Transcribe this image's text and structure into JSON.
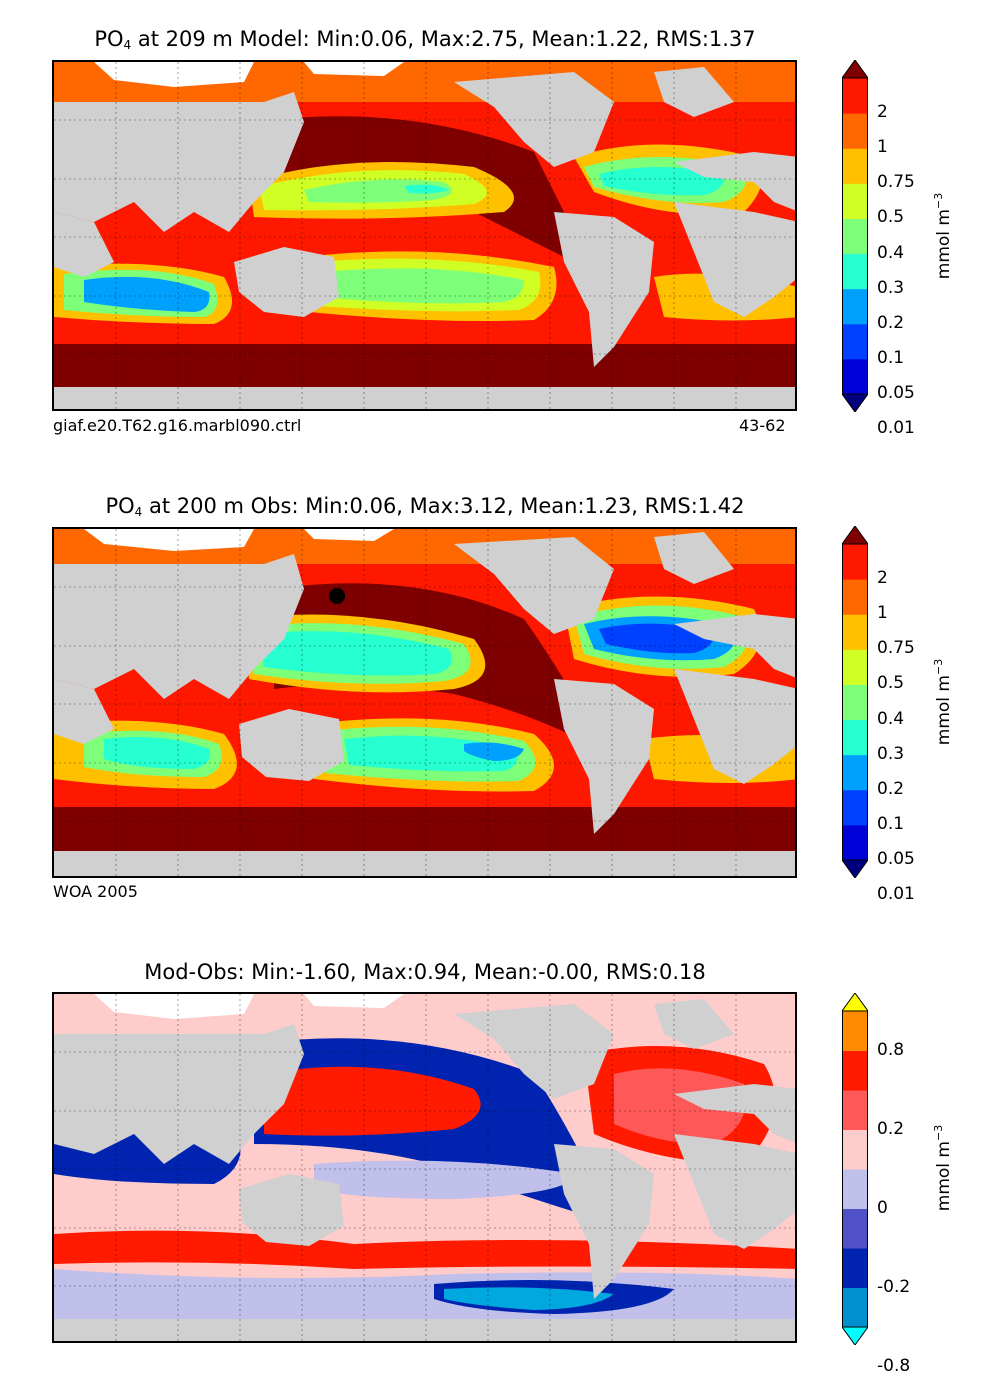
{
  "panels": [
    {
      "id": "model",
      "title_prefix": "PO",
      "title_sub": "4",
      "title_rest": " at 209 m Model: Min:0.06, Max:2.75, Mean:1.22, RMS:1.37",
      "caption_left": "giaf.e20.T62.g16.marbl090.ctrl",
      "caption_right": "43-62",
      "colorbar_unit": "mmol m",
      "colorbar_unit_sup": "−3",
      "colorbar_labels": [
        "2",
        "1",
        "0.75",
        "0.5",
        "0.4",
        "0.3",
        "0.2",
        "0.1",
        "0.05",
        "0.01"
      ],
      "colors": [
        "#00007f",
        "#0000d9",
        "#0040ff",
        "#00a0ff",
        "#26ffd0",
        "#7dff7a",
        "#d0ff26",
        "#ffc000",
        "#ff6800",
        "#ff1800",
        "#7f0000"
      ]
    },
    {
      "id": "obs",
      "title_prefix": "PO",
      "title_sub": "4",
      "title_rest": " at 200 m Obs: Min:0.06, Max:3.12, Mean:1.23, RMS:1.42",
      "caption_left": "WOA 2005",
      "caption_right": "",
      "colorbar_unit": "mmol m",
      "colorbar_unit_sup": "−3",
      "colorbar_labels": [
        "2",
        "1",
        "0.75",
        "0.5",
        "0.4",
        "0.3",
        "0.2",
        "0.1",
        "0.05",
        "0.01"
      ],
      "colors": [
        "#00007f",
        "#0000d9",
        "#0040ff",
        "#00a0ff",
        "#26ffd0",
        "#7dff7a",
        "#d0ff26",
        "#ffc000",
        "#ff6800",
        "#ff1800",
        "#7f0000"
      ]
    },
    {
      "id": "diff",
      "title_prefix": "",
      "title_sub": "",
      "title_rest": "Mod-Obs: Min:-1.60, Max:0.94, Mean:-0.00, RMS:0.18",
      "caption_left": "",
      "caption_right": "",
      "colorbar_unit": "mmol m",
      "colorbar_unit_sup": "−3",
      "colorbar_labels": [
        "0.8",
        "",
        "0.2",
        "",
        "0",
        "",
        "-0.2",
        "",
        "-0.8"
      ],
      "colors": [
        "#00ffff",
        "#0090d0",
        "#0024b0",
        "#5050c8",
        "#c0c0ea",
        "#ffcccc",
        "#ff5858",
        "#ff1a00",
        "#ff8c00",
        "#ffff00"
      ]
    }
  ],
  "chart_data": [
    {
      "type": "heatmap",
      "title": "PO4 at 209 m Model: Min:0.06, Max:2.75, Mean:1.22, RMS:1.37",
      "variable": "PO4",
      "depth_m": 209,
      "stats": {
        "min": 0.06,
        "max": 2.75,
        "mean": 1.22,
        "rms": 1.37
      },
      "colorbar_levels": [
        0.01,
        0.05,
        0.1,
        0.2,
        0.3,
        0.4,
        0.5,
        0.75,
        1,
        2
      ],
      "colorbar_extend": "both",
      "units": "mmol m^-3",
      "grid": true
    },
    {
      "type": "heatmap",
      "title": "PO4 at 200 m Obs: Min:0.06, Max:3.12, Mean:1.23, RMS:1.42",
      "variable": "PO4",
      "depth_m": 200,
      "stats": {
        "min": 0.06,
        "max": 3.12,
        "mean": 1.23,
        "rms": 1.42
      },
      "colorbar_levels": [
        0.01,
        0.05,
        0.1,
        0.2,
        0.3,
        0.4,
        0.5,
        0.75,
        1,
        2
      ],
      "colorbar_extend": "both",
      "units": "mmol m^-3",
      "grid": true
    },
    {
      "type": "heatmap",
      "title": "Mod-Obs: Min:-1.60, Max:0.94, Mean:-0.00, RMS:0.18",
      "stats": {
        "min": -1.6,
        "max": 0.94,
        "mean": -0.0,
        "rms": 0.18
      },
      "colorbar_levels": [
        -0.8,
        -0.2,
        0,
        0.2,
        0.8
      ],
      "colorbar_extend": "both",
      "units": "mmol m^-3",
      "grid": true
    }
  ]
}
